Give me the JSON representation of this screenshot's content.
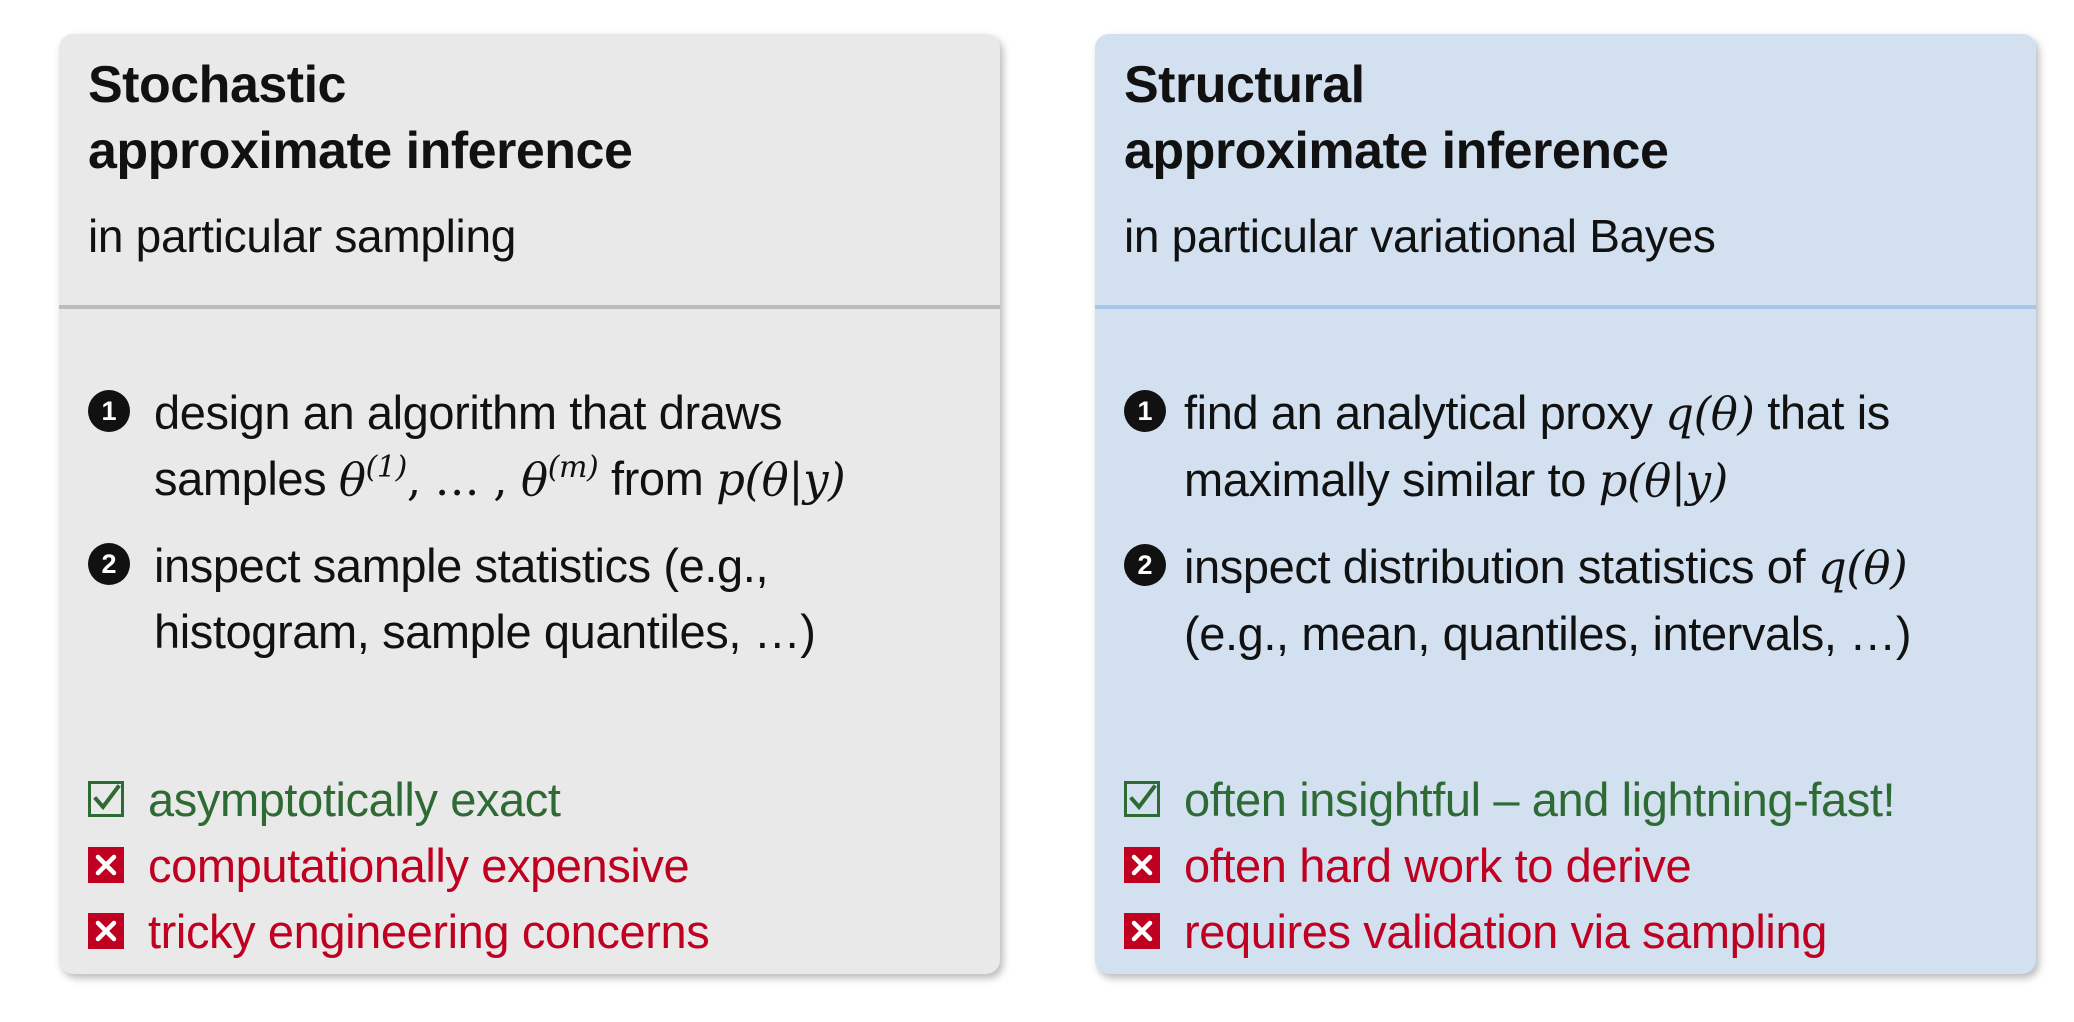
{
  "left": {
    "title_line1": "Stochastic",
    "title_line2": "approximate inference",
    "subtitle": "in particular sampling",
    "step1": {
      "marker": "1",
      "text1": "design an algorithm that draws",
      "text2_prefix": "samples ",
      "theta": "θ",
      "sup1": "(1)",
      "ellipsis": ", … , ",
      "sup2": "(m)",
      "text2_mid": " from ",
      "math_end": "p(θ|y)"
    },
    "step2": {
      "marker": "2",
      "text1": "inspect sample statistics (e.g.,",
      "text2": "histogram, sample quantiles, …)"
    },
    "pros": [
      "asymptotically exact"
    ],
    "cons": [
      "computationally expensive",
      "tricky engineering concerns"
    ]
  },
  "right": {
    "title_line1": "Structural",
    "title_line2": "approximate inference",
    "subtitle": "in particular variational Bayes",
    "step1": {
      "marker": "1",
      "text1_prefix": "find an analytical proxy ",
      "math1": "q(θ)",
      "text1_suffix": " that is",
      "text2_prefix": "maximally similar to ",
      "math2": "p(θ|y)"
    },
    "step2": {
      "marker": "2",
      "text1_prefix": "inspect distribution statistics of ",
      "math1": "q(θ)",
      "text2": "(e.g., mean, quantiles, intervals, …)"
    },
    "pros": [
      "often insightful – and lightning-fast!"
    ],
    "cons": [
      "often hard work to derive",
      "requires validation via sampling"
    ]
  },
  "colors": {
    "left_panel_bg": "#e9e9e9",
    "right_panel_bg": "#d2e0f0",
    "pro_green": "#2e6b34",
    "con_red": "#c00020"
  },
  "icons": {
    "step_marker": "filled-circle-number-icon",
    "pro": "checkbox-checked-icon",
    "con": "checkbox-x-icon"
  }
}
